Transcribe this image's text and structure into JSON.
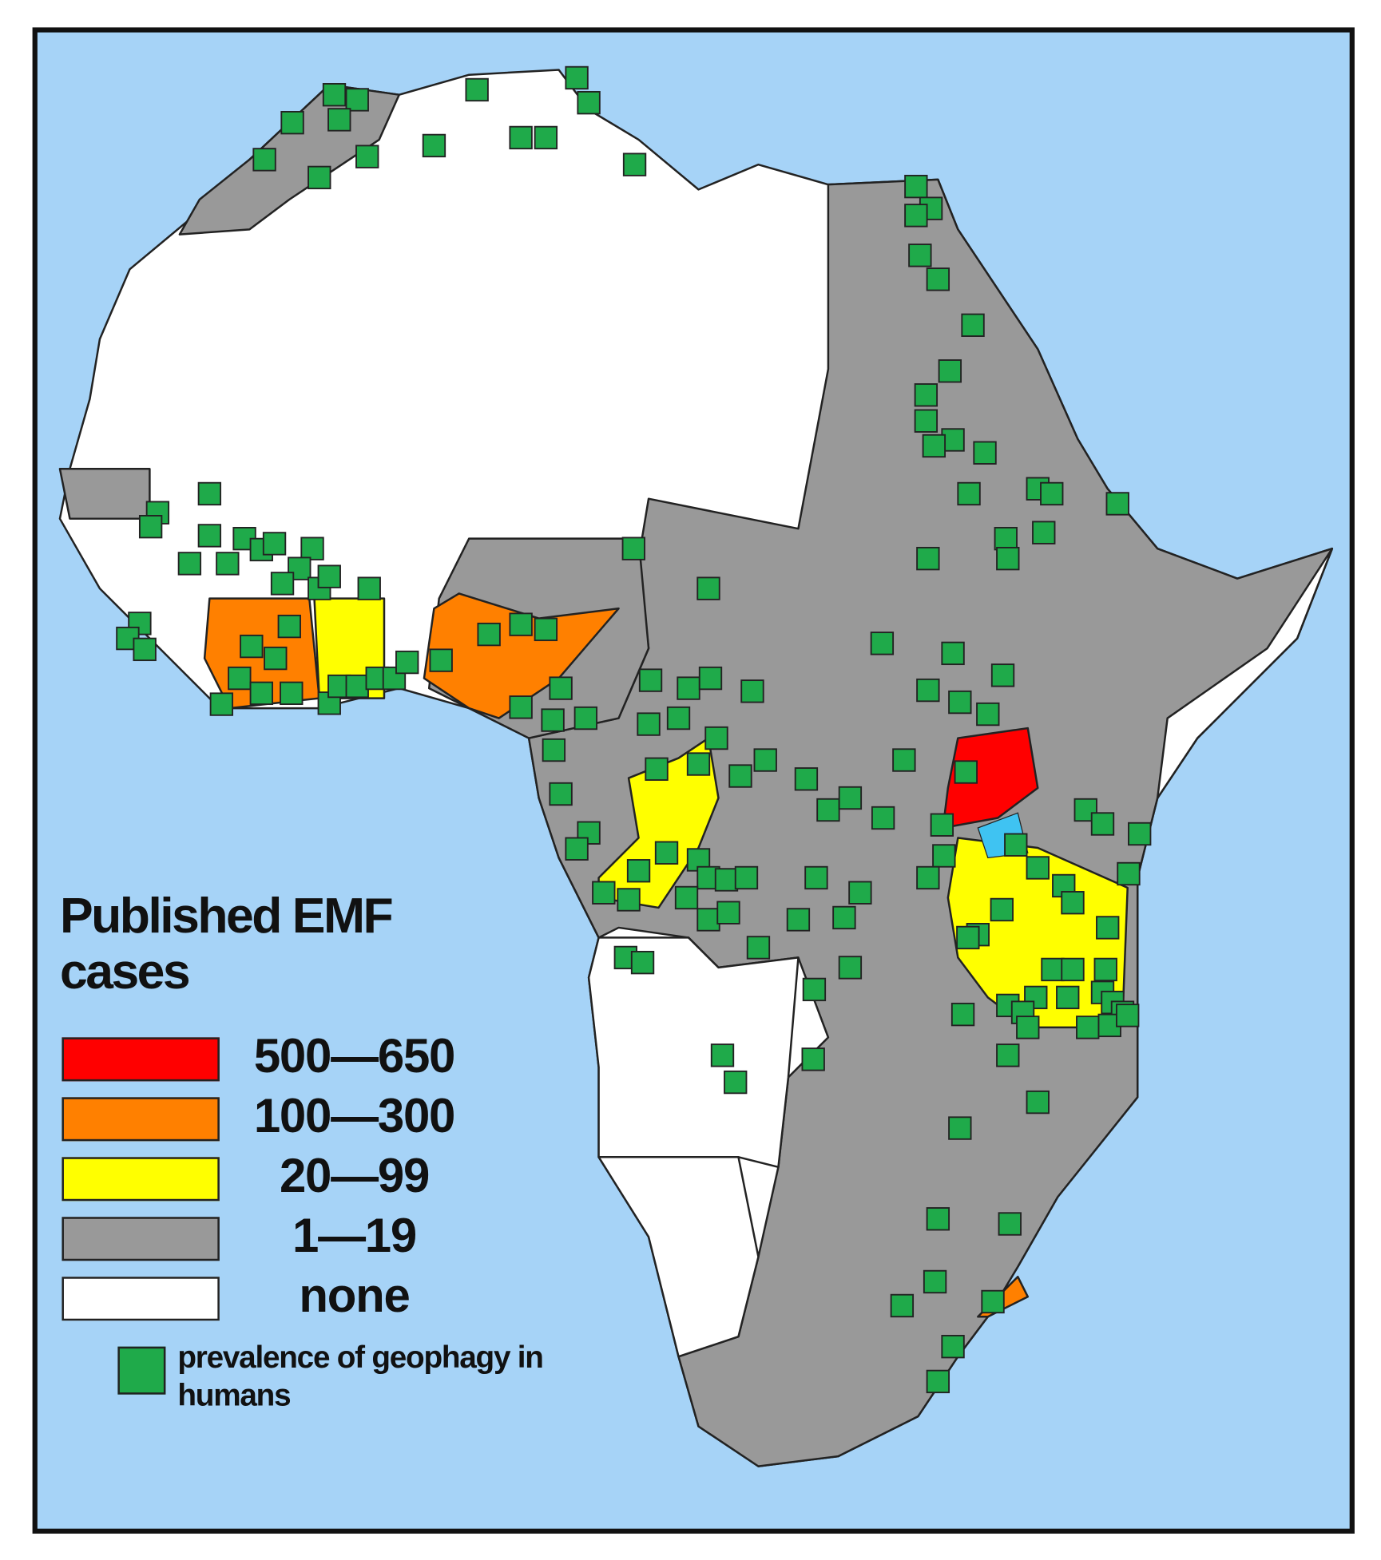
{
  "legend": {
    "title": "Published EMF cases",
    "items": [
      {
        "label": "500—650",
        "color": "#ff0000"
      },
      {
        "label": "100—300",
        "color": "#ff8000"
      },
      {
        "label": "20—99",
        "color": "#ffff00"
      },
      {
        "label": "1—19",
        "color": "#999999"
      },
      {
        "label": "none",
        "color": "#ffffff"
      }
    ],
    "marker_label": "prevalence of geophagy in humans",
    "marker_color": "#1faa4a"
  }
}
